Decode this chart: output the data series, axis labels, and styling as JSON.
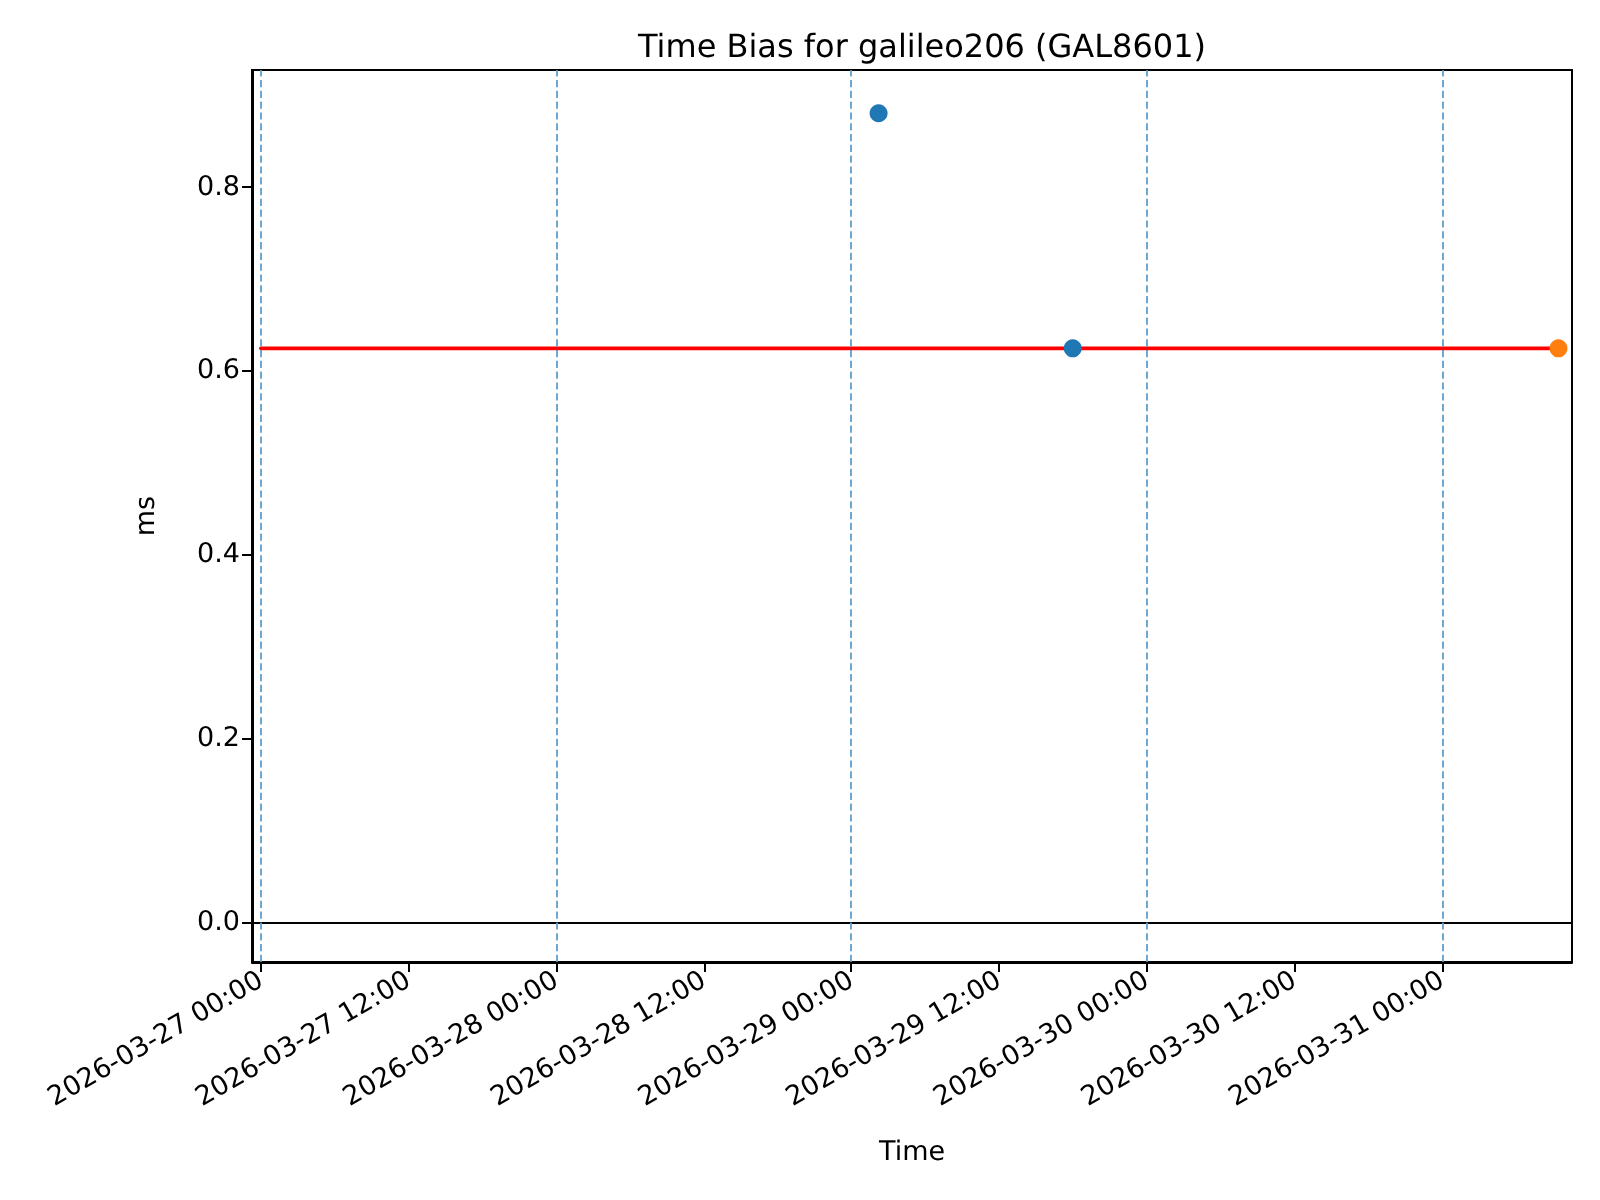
{
  "chart_data": {
    "type": "scatter",
    "title": "Time Bias for galileo206 (GAL8601)",
    "xlabel": "Time",
    "ylabel": "ms",
    "xlim": [
      "2026-03-26T23:17",
      "2026-03-31T10:35"
    ],
    "xticks": [
      {
        "value": "2026-03-27T00:00",
        "label": "2026-03-27 00:00"
      },
      {
        "value": "2026-03-27T12:00",
        "label": "2026-03-27 12:00"
      },
      {
        "value": "2026-03-28T00:00",
        "label": "2026-03-28 00:00"
      },
      {
        "value": "2026-03-28T12:00",
        "label": "2026-03-28 12:00"
      },
      {
        "value": "2026-03-29T00:00",
        "label": "2026-03-29 00:00"
      },
      {
        "value": "2026-03-29T12:00",
        "label": "2026-03-29 12:00"
      },
      {
        "value": "2026-03-30T00:00",
        "label": "2026-03-30 00:00"
      },
      {
        "value": "2026-03-30T12:00",
        "label": "2026-03-30 12:00"
      },
      {
        "value": "2026-03-31T00:00",
        "label": "2026-03-31 00:00"
      }
    ],
    "ylim": [
      -0.044,
      0.927
    ],
    "yticks": [
      {
        "value": 0,
        "label": "0.0"
      },
      0.2,
      0.4,
      0.6,
      0.8
    ],
    "series": [
      {
        "color": "#1f77b4",
        "x": [
          "2026-03-29T02:13",
          "2026-03-29T18:00"
        ],
        "values": [
          0.88,
          0.624
        ]
      },
      {
        "color": "#ff7f0e",
        "x": [
          "2026-03-31T09:29"
        ],
        "values": [
          0.624
        ]
      },
      {
        "type": "line",
        "color": "#ff0000",
        "marker": "none",
        "x": [
          "2026-03-27T00:00",
          "2026-03-31T09:29"
        ],
        "values": [
          0.624,
          0.624
        ]
      }
    ],
    "ref_lines": [
      {
        "axis": "y",
        "value": 0,
        "color": "#000000"
      },
      {
        "axis": "x",
        "value": "2026-03-27T00:00",
        "color": "#5e9fd0",
        "line_style": "dashed"
      },
      {
        "axis": "x",
        "value": "2026-03-28T00:00",
        "color": "#5e9fd0",
        "line_style": "dashed"
      },
      {
        "axis": "x",
        "value": "2026-03-29T00:00",
        "color": "#5e9fd0",
        "line_style": "dashed"
      },
      {
        "axis": "x",
        "value": "2026-03-30T00:00",
        "color": "#5e9fd0",
        "line_style": "dashed"
      },
      {
        "axis": "x",
        "value": "2026-03-31T00:00",
        "color": "#5e9fd0",
        "line_style": "dashed"
      }
    ],
    "marker": "circle",
    "grid": false
  }
}
